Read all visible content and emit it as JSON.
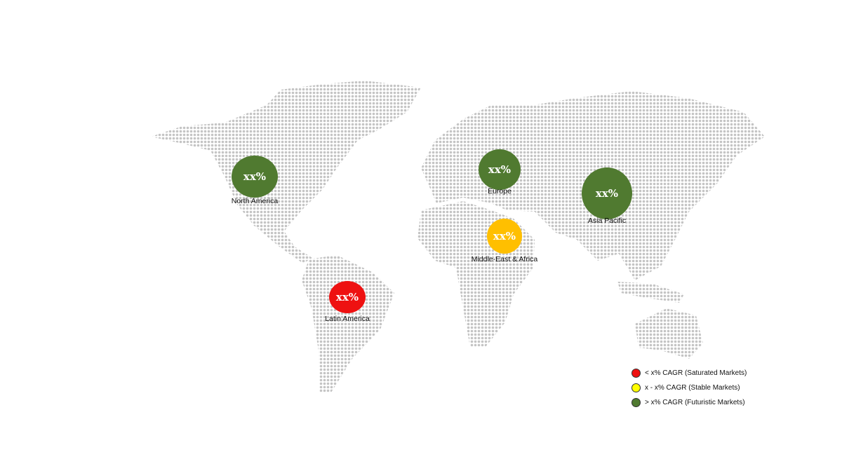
{
  "colors": {
    "saturated": "#ee1111",
    "stable": "#ffff00",
    "futuristic": "#507a30",
    "mea_bubble": "#ffbf00",
    "map_dots": "#c4c4c4"
  },
  "regions": [
    {
      "name": "North America",
      "value": "xx%",
      "category": "futuristic"
    },
    {
      "name": "Europe",
      "value": "xx%",
      "category": "futuristic"
    },
    {
      "name": "Asia Pacific",
      "value": "xx%",
      "category": "futuristic"
    },
    {
      "name": "Middle-East & Africa",
      "value": "xx%",
      "category": "stable"
    },
    {
      "name": "Latin America",
      "value": "xx%",
      "category": "saturated"
    }
  ],
  "legend": [
    {
      "label": "< x% CAGR (Saturated Markets)",
      "color": "#ee1111"
    },
    {
      "label": "x - x% CAGR (Stable Markets)",
      "color": "#ffff00"
    },
    {
      "label": "> x% CAGR (Futuristic Markets)",
      "color": "#507a30"
    }
  ]
}
